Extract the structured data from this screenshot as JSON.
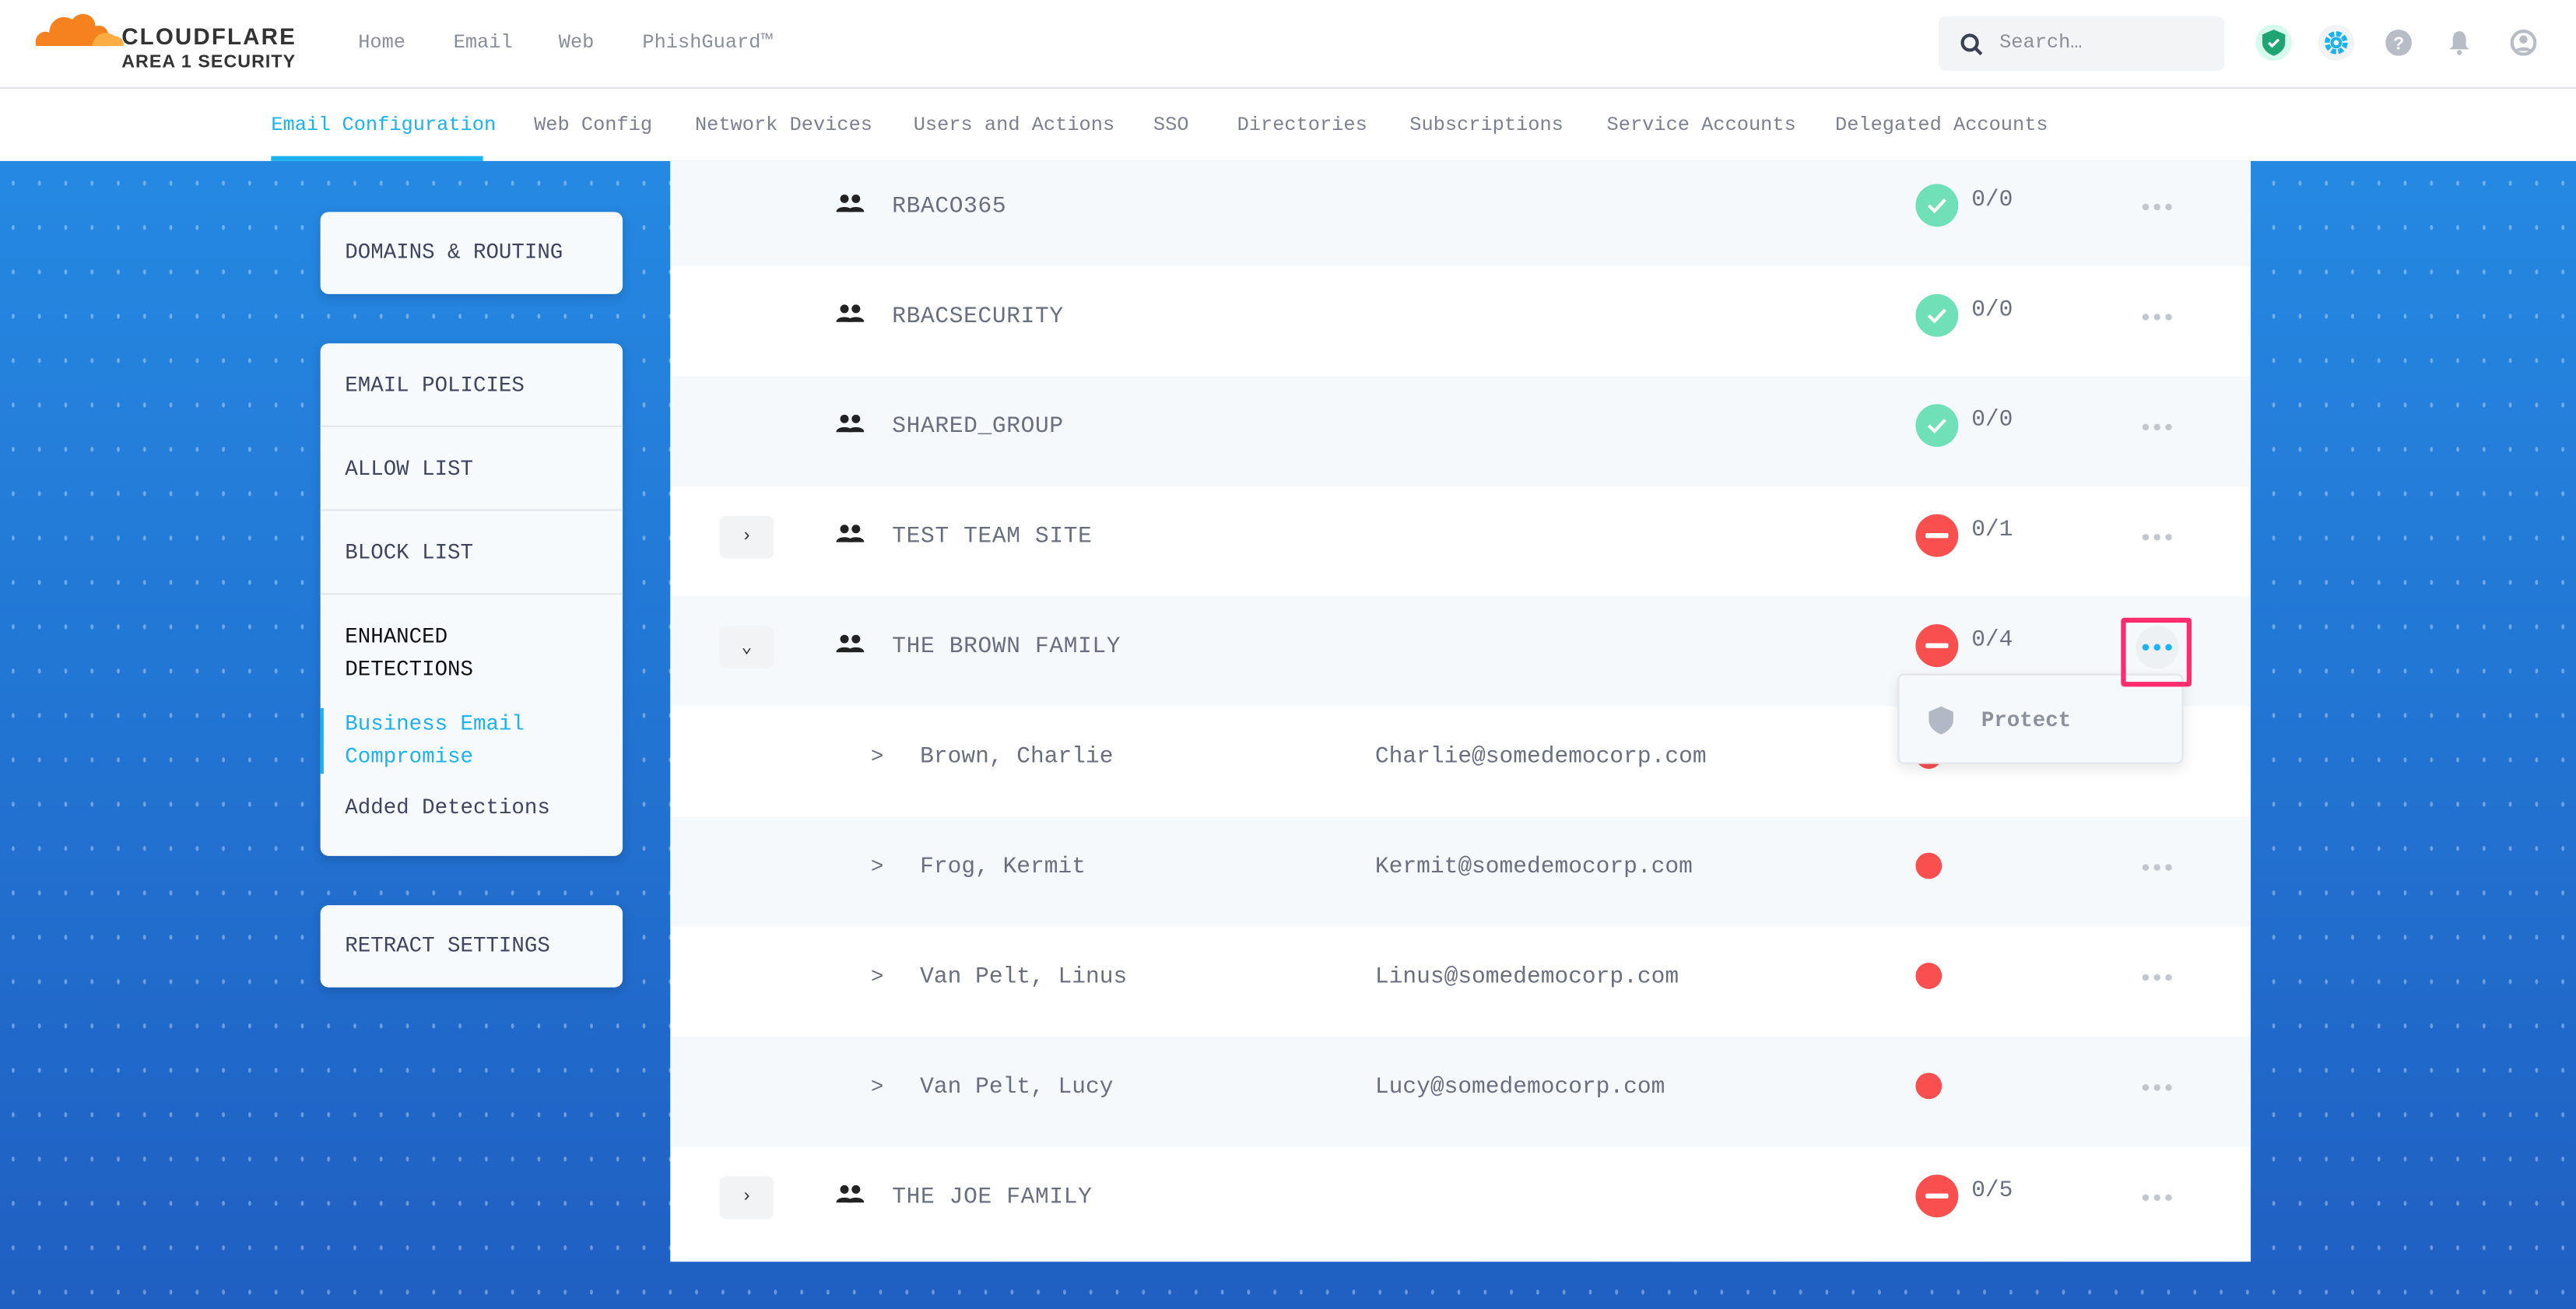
{
  "brand": {
    "name": "CLOUDFLARE",
    "product": "AREA 1 SECURITY"
  },
  "top_nav": [
    "Home",
    "Email",
    "Web",
    "PhishGuard™"
  ],
  "search": {
    "placeholder": "Search…"
  },
  "header_icons": [
    "shield-check-icon",
    "gear-icon",
    "help-icon",
    "bell-icon",
    "user-icon"
  ],
  "tabs": [
    {
      "label": "Email Configuration",
      "active": true
    },
    {
      "label": "Web Config"
    },
    {
      "label": "Network Devices"
    },
    {
      "label": "Users and Actions"
    },
    {
      "label": "SSO"
    },
    {
      "label": "Directories"
    },
    {
      "label": "Subscriptions"
    },
    {
      "label": "Service Accounts"
    },
    {
      "label": "Delegated Accounts"
    }
  ],
  "sidebar": {
    "domains": "DOMAINS & ROUTING",
    "policies": [
      "EMAIL POLICIES",
      "ALLOW LIST",
      "BLOCK LIST"
    ],
    "enhanced": "ENHANCED DETECTIONS",
    "enhanced_sub": [
      {
        "label": "Business Email Compromise",
        "active": true
      },
      {
        "label": "Added Detections"
      }
    ],
    "retract": "RETRACT SETTINGS"
  },
  "colors": {
    "accent": "#1bb2ee",
    "ok": "#6fe0b8",
    "error": "#fa4f4f",
    "highlight": "#ff2d6f"
  },
  "rows": [
    {
      "type": "group",
      "name": "RBACO365",
      "status": "ok",
      "count": "0/0"
    },
    {
      "type": "group",
      "name": "RBACSECURITY",
      "status": "ok",
      "count": "0/0"
    },
    {
      "type": "group",
      "name": "SHARED_GROUP",
      "status": "ok",
      "count": "0/0"
    },
    {
      "type": "group",
      "name": "TEST TEAM SITE",
      "status": "error",
      "count": "0/1",
      "expander": "collapsed"
    },
    {
      "type": "group",
      "name": "THE BROWN FAMILY",
      "status": "error",
      "count": "0/4",
      "expander": "expanded",
      "menu_open": true
    },
    {
      "type": "member",
      "name": "Brown, Charlie",
      "email": "Charlie@somedemocorp.com"
    },
    {
      "type": "member",
      "name": "Frog, Kermit",
      "email": "Kermit@somedemocorp.com"
    },
    {
      "type": "member",
      "name": "Van Pelt, Linus",
      "email": "Linus@somedemocorp.com"
    },
    {
      "type": "member",
      "name": "Van Pelt, Lucy",
      "email": "Lucy@somedemocorp.com"
    },
    {
      "type": "group",
      "name": "THE JOE FAMILY",
      "status": "error",
      "count": "0/5",
      "expander": "collapsed"
    }
  ],
  "member_chevron": ">",
  "menu": {
    "items": [
      {
        "label": "Protect",
        "icon": "shield-icon"
      }
    ]
  }
}
